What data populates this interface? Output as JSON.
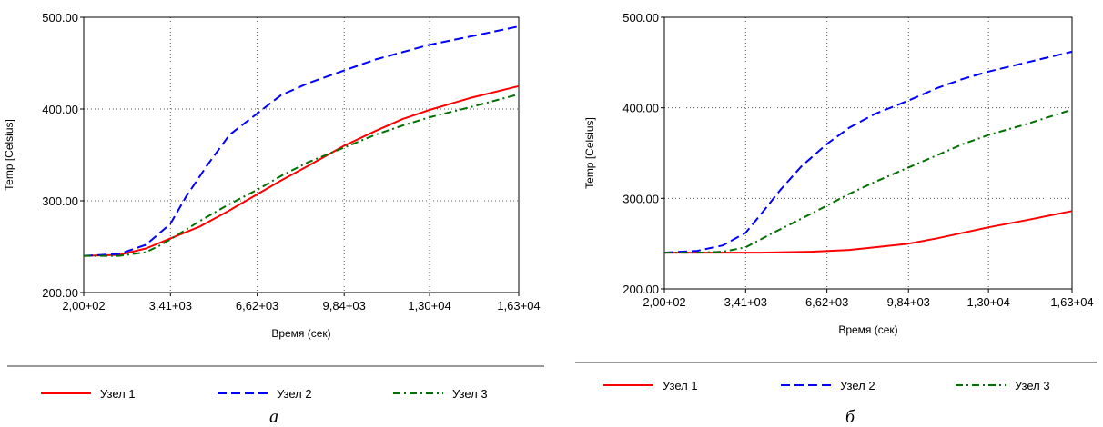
{
  "chart_data": [
    {
      "type": "line",
      "caption": "а",
      "xlabel": "Время (сек)",
      "ylabel": "Temp [Celsius]",
      "xlim": [
        200,
        16300
      ],
      "ylim": [
        200,
        500
      ],
      "x_ticks": [
        200,
        3410,
        6620,
        9840,
        13000,
        16300
      ],
      "x_tick_labels": [
        "2,00+02",
        "3,41+03",
        "6,62+03",
        "9,84+03",
        "1,30+04",
        "1,63+04"
      ],
      "y_ticks": [
        200,
        300,
        400,
        500
      ],
      "y_tick_labels": [
        "200.00",
        "300.00",
        "400.00",
        "500.00"
      ],
      "grid": true,
      "legend_position": "bottom",
      "series": [
        {
          "name": "Узел 1",
          "color": "#ff0000",
          "style": "solid",
          "x": [
            200,
            1500,
            2500,
            3410,
            4500,
            5500,
            6620,
            7500,
            8500,
            9840,
            11000,
            12000,
            13000,
            14500,
            16300
          ],
          "y": [
            240,
            241,
            248,
            259,
            272,
            288,
            307,
            322,
            338,
            360,
            376,
            389,
            399,
            412,
            425
          ]
        },
        {
          "name": "Узел 2",
          "color": "#0000ff",
          "style": "dashed",
          "x": [
            200,
            1500,
            2500,
            3410,
            4000,
            4800,
            5600,
            6620,
            7500,
            8500,
            9840,
            11000,
            12000,
            13000,
            14500,
            16300
          ],
          "y": [
            240,
            242,
            252,
            275,
            305,
            340,
            372,
            395,
            415,
            428,
            442,
            454,
            462,
            470,
            479,
            490
          ]
        },
        {
          "name": "Узел 3",
          "color": "#007000",
          "style": "dashdot",
          "x": [
            200,
            1500,
            2500,
            3000,
            3410,
            4500,
            5500,
            6620,
            7500,
            8500,
            9840,
            11000,
            12000,
            13000,
            14500,
            16300
          ],
          "y": [
            240,
            240,
            244,
            251,
            258,
            278,
            295,
            312,
            327,
            342,
            358,
            372,
            382,
            391,
            402,
            416
          ]
        }
      ]
    },
    {
      "type": "line",
      "caption": "б",
      "xlabel": "Время (сек)",
      "ylabel": "Temp [Celsius]",
      "xlim": [
        200,
        16300
      ],
      "ylim": [
        200,
        500
      ],
      "x_ticks": [
        200,
        3410,
        6620,
        9840,
        13000,
        16300
      ],
      "x_tick_labels": [
        "2,00+02",
        "3,41+03",
        "6,62+03",
        "9,84+03",
        "1,30+04",
        "1,63+04"
      ],
      "y_ticks": [
        200,
        300,
        400,
        500
      ],
      "y_tick_labels": [
        "200.00",
        "300.00",
        "400.00",
        "500.00"
      ],
      "grid": true,
      "legend_position": "bottom",
      "series": [
        {
          "name": "Узел 1",
          "color": "#ff0000",
          "style": "solid",
          "x": [
            200,
            2000,
            4000,
            6000,
            7500,
            8500,
            9840,
            11000,
            12000,
            13000,
            14500,
            16300
          ],
          "y": [
            240,
            240,
            240,
            241,
            243,
            246,
            250,
            256,
            262,
            268,
            276,
            286
          ]
        },
        {
          "name": "Узел 2",
          "color": "#0000ff",
          "style": "dashed",
          "x": [
            200,
            1500,
            2500,
            3410,
            4000,
            4800,
            5600,
            6620,
            7500,
            8500,
            9840,
            11000,
            12000,
            13000,
            14500,
            16300
          ],
          "y": [
            240,
            242,
            248,
            262,
            282,
            310,
            335,
            360,
            378,
            393,
            408,
            422,
            432,
            440,
            450,
            462
          ]
        },
        {
          "name": "Узел 3",
          "color": "#007000",
          "style": "dashdot",
          "x": [
            200,
            1500,
            2500,
            3410,
            4500,
            5500,
            6620,
            7500,
            8500,
            9840,
            11000,
            12000,
            13000,
            14500,
            16300
          ],
          "y": [
            240,
            240,
            241,
            246,
            262,
            276,
            292,
            305,
            318,
            334,
            348,
            360,
            370,
            382,
            398
          ]
        }
      ]
    }
  ]
}
